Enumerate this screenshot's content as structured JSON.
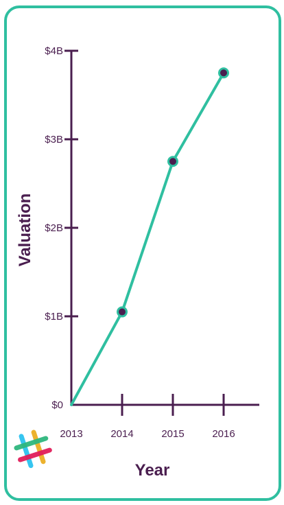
{
  "chart_data": {
    "type": "line",
    "xlabel": "Year",
    "ylabel": "Valuation",
    "x": [
      "2013",
      "2014",
      "2015",
      "2016"
    ],
    "series": [
      {
        "values": [
          0,
          1.05,
          2.75,
          3.75
        ]
      }
    ],
    "y_tick_labels": [
      "$0",
      "$1B",
      "$2B",
      "$3B",
      "$4B"
    ],
    "ylim": [
      0,
      4
    ],
    "grid": false,
    "legend": "none",
    "colors": {
      "line": "#2fbfa0",
      "marker": "#4a1e4f",
      "axis": "#4a1e4f",
      "border": "#2fbfa0"
    }
  },
  "logo": {
    "icon": "slack-hash-icon"
  }
}
